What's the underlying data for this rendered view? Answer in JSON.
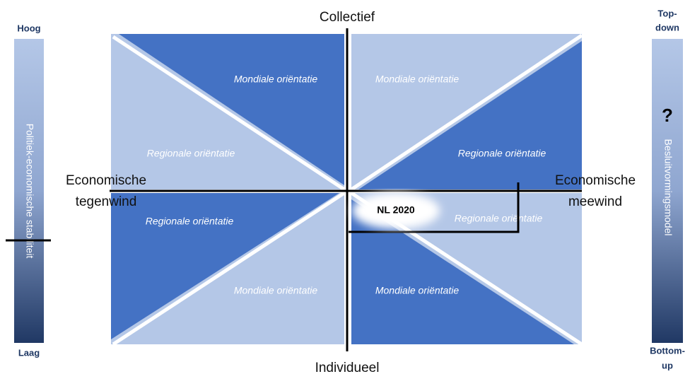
{
  "axes": {
    "top": "Collectief",
    "bottom": "Individueel",
    "left": [
      "Economische",
      "tegenwind"
    ],
    "right": [
      "Economische",
      "meewind"
    ]
  },
  "quadrants": [
    {
      "position": "top-left",
      "dark": "Mondiale oriëntatie",
      "light": "Regionale oriëntatie"
    },
    {
      "position": "top-right",
      "light": "Mondiale oriëntatie",
      "dark": "Regionale oriëntatie"
    },
    {
      "position": "bottom-left",
      "dark": "Regionale oriëntatie",
      "light": "Mondiale oriëntatie"
    },
    {
      "position": "bottom-right",
      "light": "Regionale oriëntatie",
      "dark": "Mondiale oriëntatie"
    }
  ],
  "marker": "NL 2020",
  "left_scale": {
    "title": "Politiek-economische stabiliteit",
    "top": "Hoog",
    "bottom": "Laag"
  },
  "right_scale": {
    "title": "Besluitvormingsmodel",
    "symbol": "?",
    "top": [
      "Top-",
      "down"
    ],
    "bottom": [
      "Bottom-",
      "up"
    ]
  }
}
